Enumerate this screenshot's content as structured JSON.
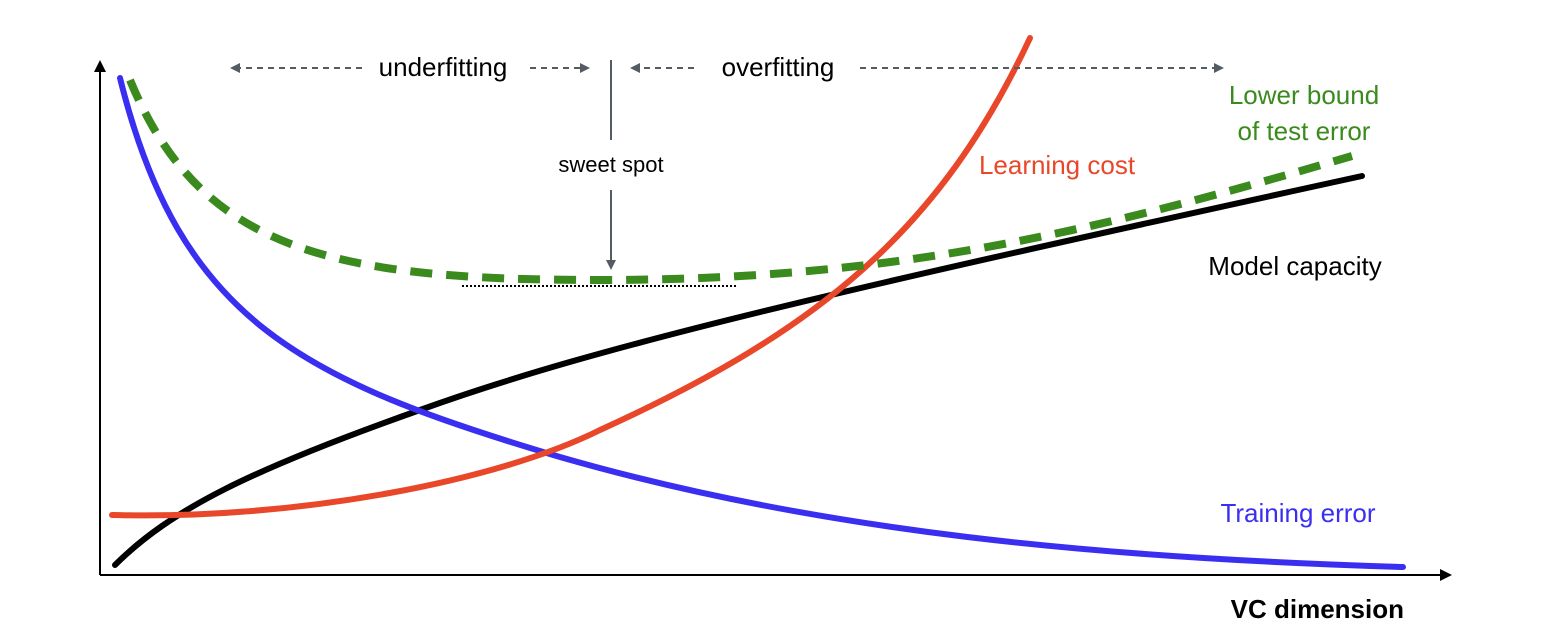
{
  "labels": {
    "underfitting": "underfitting",
    "overfitting": "overfitting",
    "sweet_spot": "sweet spot",
    "lower_bound_line1": "Lower bound",
    "lower_bound_line2": "of test error",
    "learning_cost": "Learning cost",
    "model_capacity": "Model capacity",
    "training_error": "Training error",
    "x_axis": "VC dimension"
  },
  "colors": {
    "training_error": "#3a2ff0",
    "learning_cost": "#e8472a",
    "lower_bound": "#3a8a1e",
    "model_capacity": "#000000",
    "annotation": "#555b63"
  }
}
